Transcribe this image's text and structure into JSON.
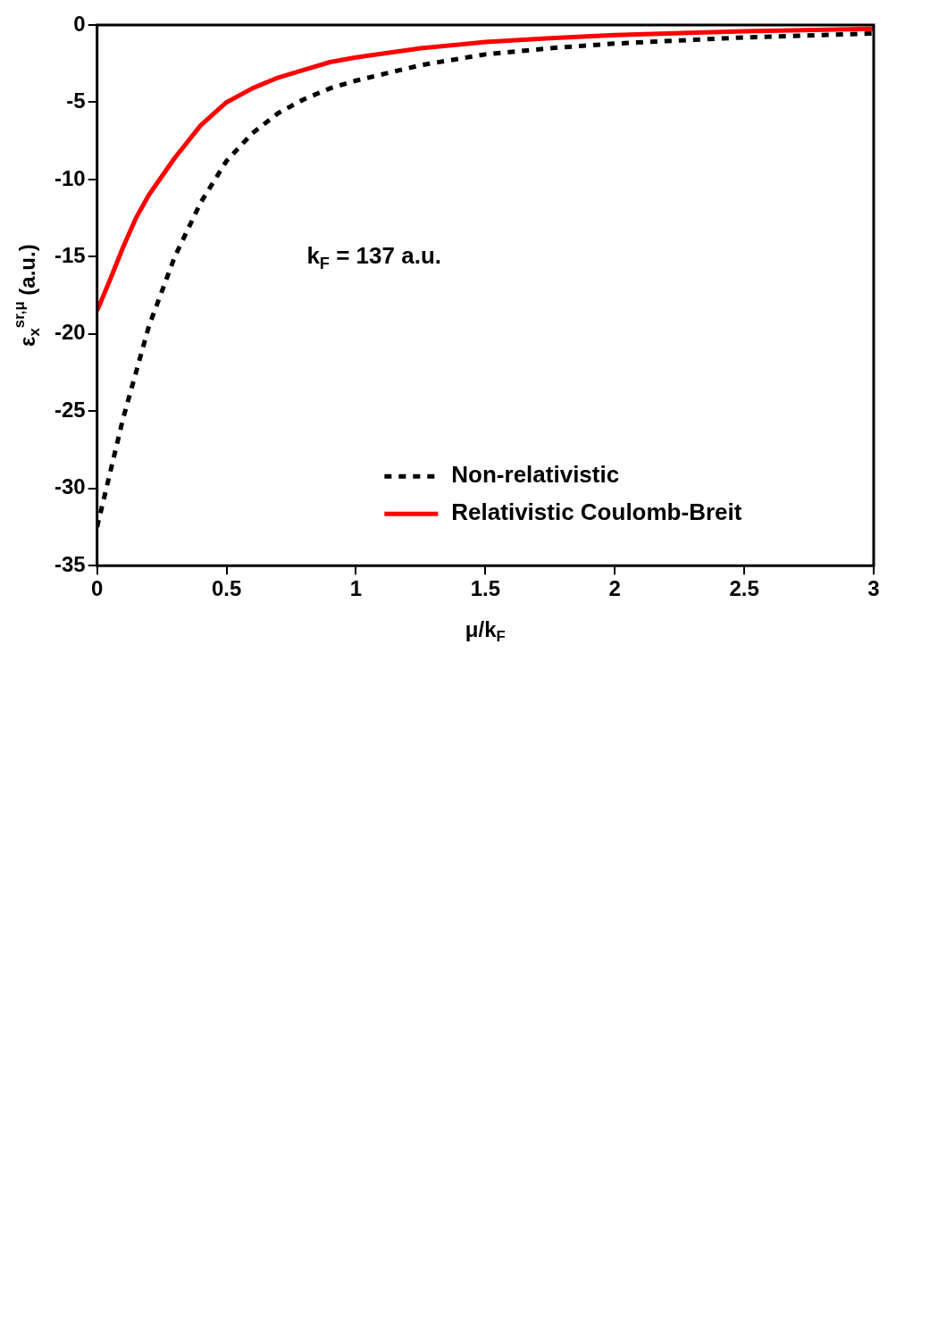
{
  "chart_data": {
    "type": "line",
    "xlabel": "μ/k$_{F}$",
    "ylabel": "ε$_{x}$$^{sr,μ}$ (a.u.)",
    "annotations": [
      "k$_{F}$ = 137 a.u."
    ],
    "x": [
      0,
      0.05,
      0.1,
      0.15,
      0.2,
      0.3,
      0.4,
      0.5,
      0.6,
      0.7,
      0.8,
      0.9,
      1,
      1.25,
      1.5,
      1.75,
      2,
      2.5,
      3
    ],
    "series": [
      {
        "name": "Non-relativistic",
        "color": "#000000",
        "line_style": "dashed",
        "values": [
          -32.5,
          -29,
          -25.5,
          -22.5,
          -19.5,
          -15,
          -11.5,
          -8.8,
          -7,
          -5.7,
          -4.8,
          -4.1,
          -3.6,
          -2.6,
          -1.9,
          -1.5,
          -1.2,
          -0.8,
          -0.55
        ]
      },
      {
        "name": "Relativistic Coulomb-Breit",
        "color": "#ff0000",
        "line_style": "solid",
        "values": [
          -18.5,
          -16.5,
          -14.4,
          -12.5,
          -11,
          -8.6,
          -6.5,
          -5,
          -4.1,
          -3.4,
          -2.9,
          -2.4,
          -2.1,
          -1.5,
          -1.1,
          -0.85,
          -0.65,
          -0.4,
          -0.25
        ]
      }
    ],
    "xlim": [
      0,
      3
    ],
    "xticks": [
      0,
      0.5,
      1,
      1.5,
      2,
      2.5,
      3
    ],
    "ylim": [
      -35,
      0
    ],
    "yticks": [
      -35,
      -30,
      -25,
      -20,
      -15,
      -10,
      -5,
      0
    ],
    "grid": false,
    "legend": "bottom right",
    "marker": "none"
  }
}
